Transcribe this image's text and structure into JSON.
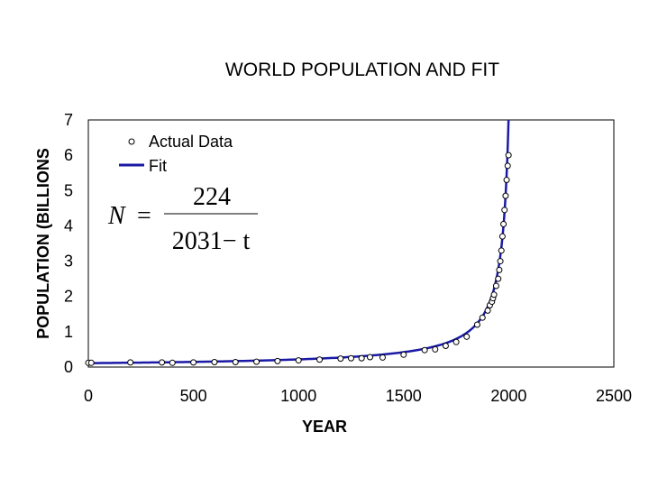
{
  "chart_data": {
    "type": "scatter",
    "title": "WORLD POPULATION  AND  FIT",
    "xlabel": "YEAR",
    "ylabel": "POPULATION (BILLIONS",
    "xlim": [
      0,
      2500
    ],
    "ylim": [
      0,
      7
    ],
    "x_ticks": [
      "0",
      "500",
      "1000",
      "1500",
      "2000",
      "2500"
    ],
    "y_ticks": [
      "0",
      "1",
      "2",
      "3",
      "4",
      "5",
      "6",
      "7"
    ],
    "legend_position": "top-left",
    "colors": {
      "fit": "#1a1aa6",
      "points": "#000000",
      "one_tick": "#1a1aa6"
    },
    "series": [
      {
        "name": "Actual Data",
        "kind": "scatter",
        "x": [
          0,
          14,
          200,
          350,
          400,
          500,
          600,
          700,
          800,
          900,
          1000,
          1100,
          1200,
          1250,
          1300,
          1340,
          1400,
          1500,
          1600,
          1650,
          1700,
          1750,
          1800,
          1850,
          1875,
          1900,
          1910,
          1920,
          1925,
          1930,
          1940,
          1950,
          1955,
          1960,
          1965,
          1970,
          1975,
          1980,
          1985,
          1990,
          1995,
          1999
        ],
        "y": [
          0.12,
          0.12,
          0.13,
          0.13,
          0.12,
          0.13,
          0.14,
          0.14,
          0.15,
          0.17,
          0.19,
          0.21,
          0.24,
          0.25,
          0.25,
          0.28,
          0.27,
          0.35,
          0.48,
          0.5,
          0.6,
          0.71,
          0.86,
          1.2,
          1.4,
          1.6,
          1.75,
          1.85,
          1.95,
          2.05,
          2.3,
          2.5,
          2.75,
          3.0,
          3.3,
          3.7,
          4.05,
          4.45,
          4.85,
          5.3,
          5.7,
          6.0
        ]
      },
      {
        "name": "Fit",
        "kind": "line",
        "formula": {
          "lhs": "N",
          "eq": "=",
          "numerator": "224",
          "denominator": "2031− t"
        }
      }
    ]
  }
}
